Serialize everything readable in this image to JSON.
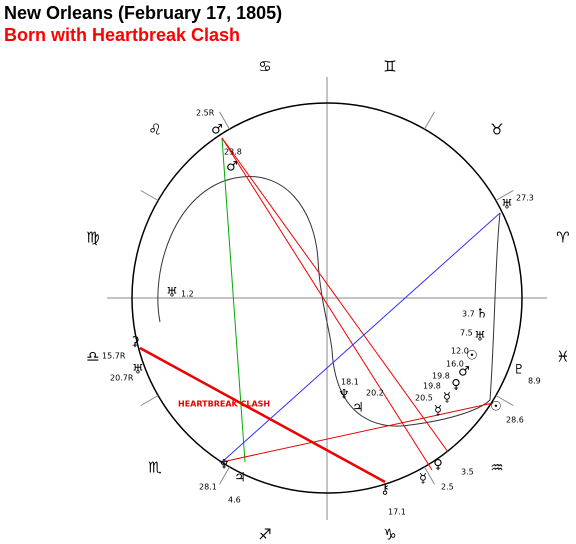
{
  "header": {
    "title": "New Orleans (February 17, 1805)",
    "subtitle": "Born with Heartbreak Clash"
  },
  "signs": [
    "♋",
    "♊",
    "♌",
    "♉",
    "♍",
    "♈",
    "♎",
    "♓",
    "♏",
    "♒",
    "♐",
    "♑"
  ],
  "planets": [
    {
      "glyph": "♂",
      "label": "2.5R"
    },
    {
      "glyph": "♂",
      "label": "23.8"
    },
    {
      "glyph": "♅",
      "label": "27.3"
    },
    {
      "glyph": "♅",
      "label": "1.2"
    },
    {
      "glyph": "♄",
      "label": "3.7"
    },
    {
      "glyph": "♅",
      "label": "7.5"
    },
    {
      "glyph": "☉",
      "label": "12.0"
    },
    {
      "glyph": "♂",
      "label": "16.0"
    },
    {
      "glyph": "♀",
      "label": "19.8"
    },
    {
      "glyph": "☿",
      "label": "19.8"
    },
    {
      "glyph": "♇",
      "label": "8.9"
    },
    {
      "glyph": "♆",
      "label": "18.1"
    },
    {
      "glyph": "♃",
      "label": "20.2"
    },
    {
      "glyph": "☿",
      "label": "20.5"
    },
    {
      "glyph": "☉",
      "label": "28.6"
    },
    {
      "glyph": "♀",
      "label": "3.5"
    },
    {
      "glyph": "☿",
      "label": "2.5"
    },
    {
      "glyph": "⚷",
      "label": "17.1"
    },
    {
      "glyph": "♆",
      "label": "28.1"
    },
    {
      "glyph": "♃",
      "label": "4.6"
    },
    {
      "glyph": "⚳",
      "label": "15.7R"
    },
    {
      "glyph": "♅",
      "label": "20.7R"
    }
  ],
  "annotation": "HEARTBREAK CLASH"
}
